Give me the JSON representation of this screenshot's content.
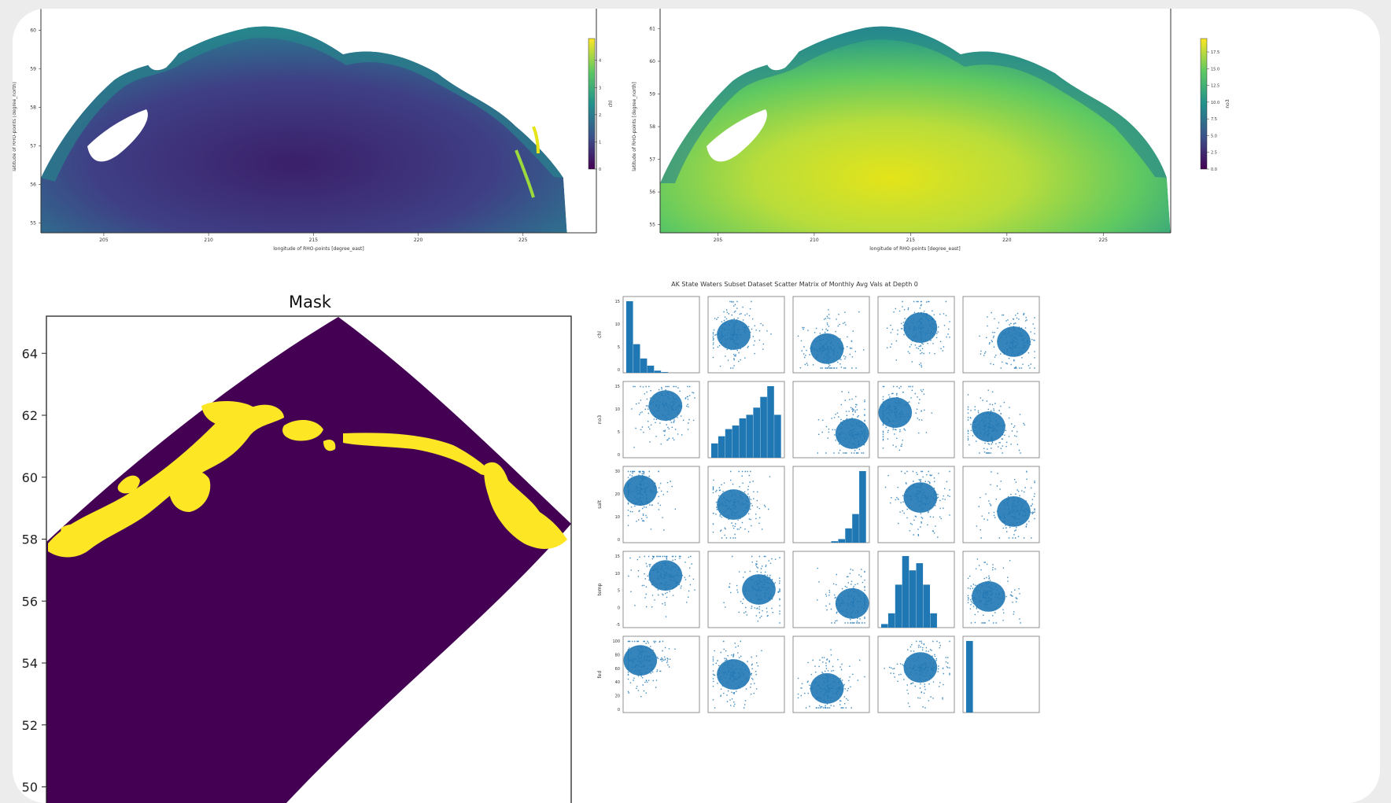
{
  "colors": {
    "viridis_low": "#440154",
    "viridis_mid": "#21918c",
    "viridis_high": "#fde725",
    "mask_low": "#440154",
    "mask_high": "#fde725",
    "scatter": "#1f77b4",
    "card_bg": "#ffffff",
    "page_bg": "#ececec"
  },
  "chart_data": [
    {
      "type": "heatmap",
      "title": "",
      "xlabel": "longitude of RHO-points [degree_east]",
      "ylabel": "latitude of RHO-points [degree_north]",
      "xticks": [
        "205",
        "210",
        "215",
        "220",
        "225"
      ],
      "yticks": [
        "55",
        "56",
        "57",
        "58",
        "59",
        "60"
      ],
      "colorbar_label": "chl",
      "colorbar_ticks": [
        "0",
        "1",
        "2",
        "3",
        "4"
      ],
      "colormap": "viridis"
    },
    {
      "type": "heatmap",
      "title": "",
      "xlabel": "longitude of RHO-points [degree_east]",
      "ylabel": "latitude of RHO-points [degree_north]",
      "xticks": [
        "205",
        "210",
        "215",
        "220",
        "225"
      ],
      "yticks": [
        "55",
        "56",
        "57",
        "58",
        "59",
        "60",
        "61"
      ],
      "colorbar_label": "no3",
      "colorbar_ticks": [
        "0.0",
        "2.5",
        "5.0",
        "7.5",
        "10.0",
        "12.5",
        "15.0",
        "17.5"
      ],
      "colormap": "viridis"
    },
    {
      "type": "heatmap",
      "title": "Mask",
      "xlabel": "",
      "ylabel": "",
      "yticks": [
        "50",
        "52",
        "54",
        "56",
        "58",
        "60",
        "62",
        "64"
      ],
      "ylim": [
        49.2,
        65.2
      ],
      "values": [
        "0",
        "1"
      ],
      "colormap": "viridis"
    },
    {
      "type": "scatter",
      "title": "AK State Waters Subset Dataset Scatter Matrix of Monthly Avg Vals at Depth 0",
      "variables": [
        "chl",
        "no3",
        "salt",
        "temp",
        "fed"
      ],
      "row_ticks": [
        [
          "0",
          "5",
          "10",
          "15"
        ],
        [
          "0",
          "5",
          "10",
          "15"
        ],
        [
          "0",
          "10",
          "20",
          "30"
        ],
        [
          "-5",
          "0",
          "5",
          "10",
          "15"
        ],
        [
          "0",
          "20",
          "40",
          "60",
          "80",
          "100"
        ]
      ],
      "diagonal": "histogram"
    }
  ]
}
